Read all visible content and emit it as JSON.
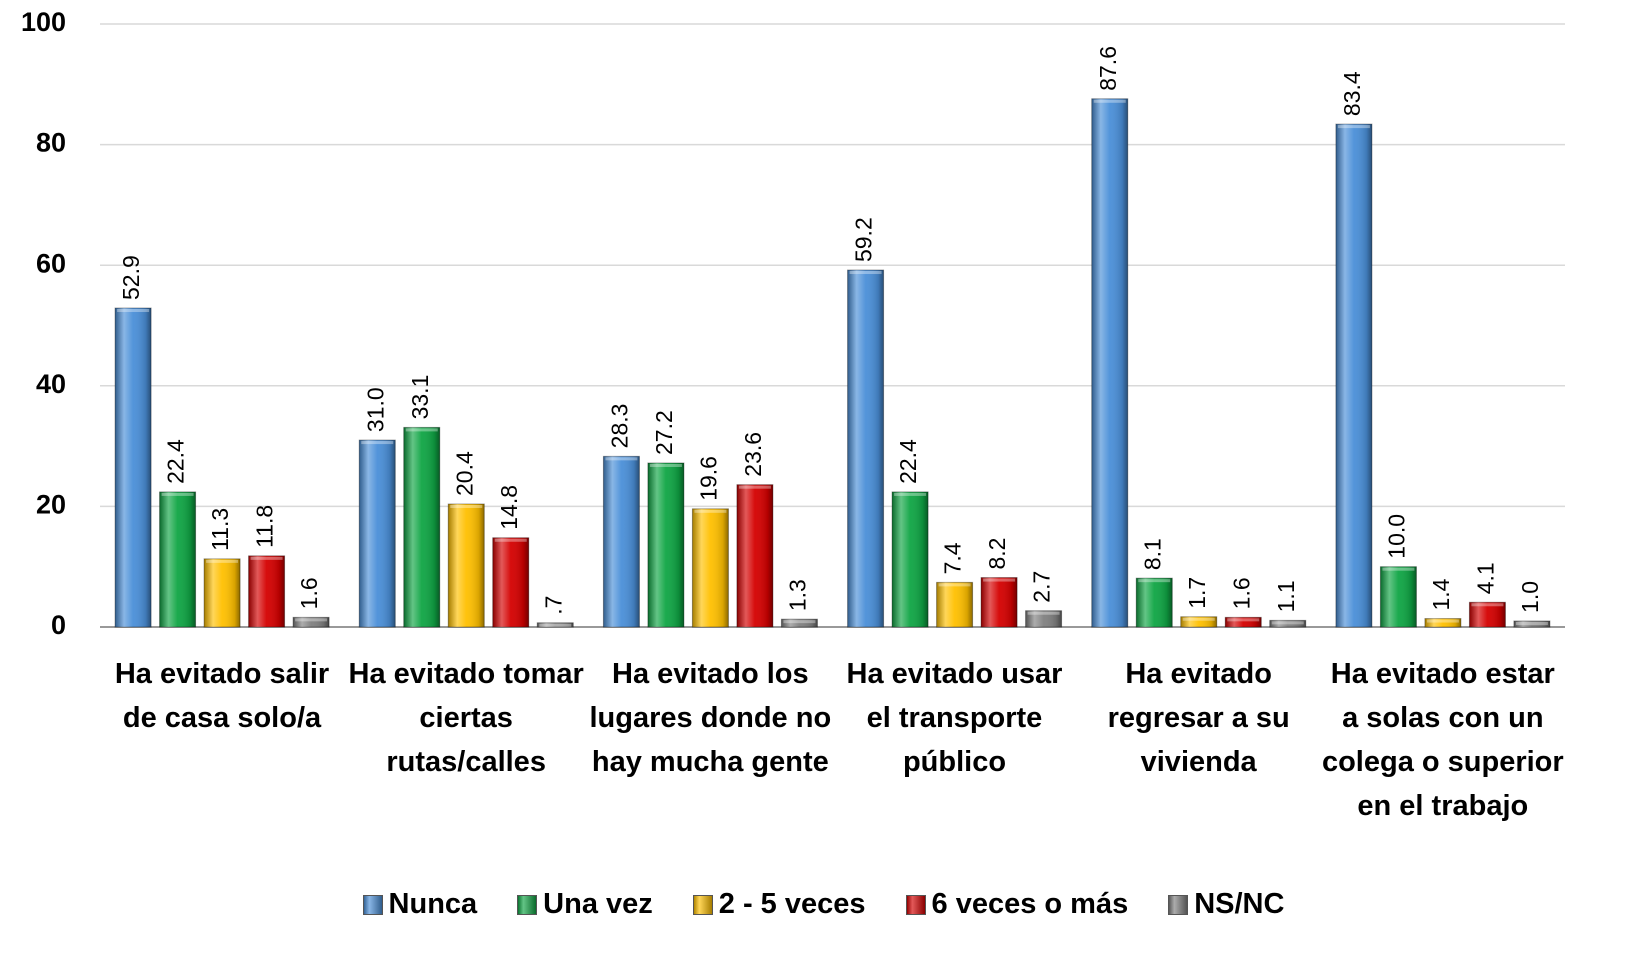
{
  "chart_data": {
    "type": "bar",
    "categories": [
      "Ha evitado salir de casa solo/a",
      "Ha evitado tomar ciertas rutas/calles",
      "Ha evitado los lugares donde no hay mucha gente",
      "Ha evitado usar el transporte público",
      "Ha evitado regresar a su vivienda",
      "Ha evitado estar a solas con un colega o superior en el trabajo"
    ],
    "series": [
      {
        "name": "Nunca",
        "color": "#4a8fd8",
        "values": [
          52.9,
          31.0,
          28.3,
          59.2,
          87.6,
          83.4
        ],
        "value_labels": [
          "52.9",
          "31.0",
          "28.3",
          "59.2",
          "87.6",
          "83.4"
        ]
      },
      {
        "name": "Una vez",
        "color": "#0fa544",
        "values": [
          22.4,
          33.1,
          27.2,
          22.4,
          8.1,
          10.0
        ],
        "value_labels": [
          "22.4",
          "33.1",
          "27.2",
          "22.4",
          "8.1",
          "10.0"
        ]
      },
      {
        "name": "2 - 5 veces",
        "color": "#ffc000",
        "values": [
          11.3,
          20.4,
          19.6,
          7.4,
          1.7,
          1.4
        ],
        "value_labels": [
          "11.3",
          "20.4",
          "19.6",
          "7.4",
          "1.7",
          "1.4"
        ]
      },
      {
        "name": "6 veces o más",
        "color": "#d40000",
        "values": [
          11.8,
          14.8,
          23.6,
          8.2,
          1.6,
          4.1
        ],
        "value_labels": [
          "11.8",
          "14.8",
          "23.6",
          "8.2",
          "1.6",
          "4.1"
        ]
      },
      {
        "name": "NS/NC",
        "color": "#808080",
        "values": [
          1.6,
          0.7,
          1.3,
          2.7,
          1.1,
          1.0
        ],
        "value_labels": [
          "1.6",
          ".7",
          "1.3",
          "2.7",
          "1.1",
          "1.0"
        ]
      }
    ],
    "ylim": [
      0,
      100
    ],
    "yticks": [
      0,
      20,
      40,
      60,
      80,
      100
    ],
    "grid": true
  }
}
